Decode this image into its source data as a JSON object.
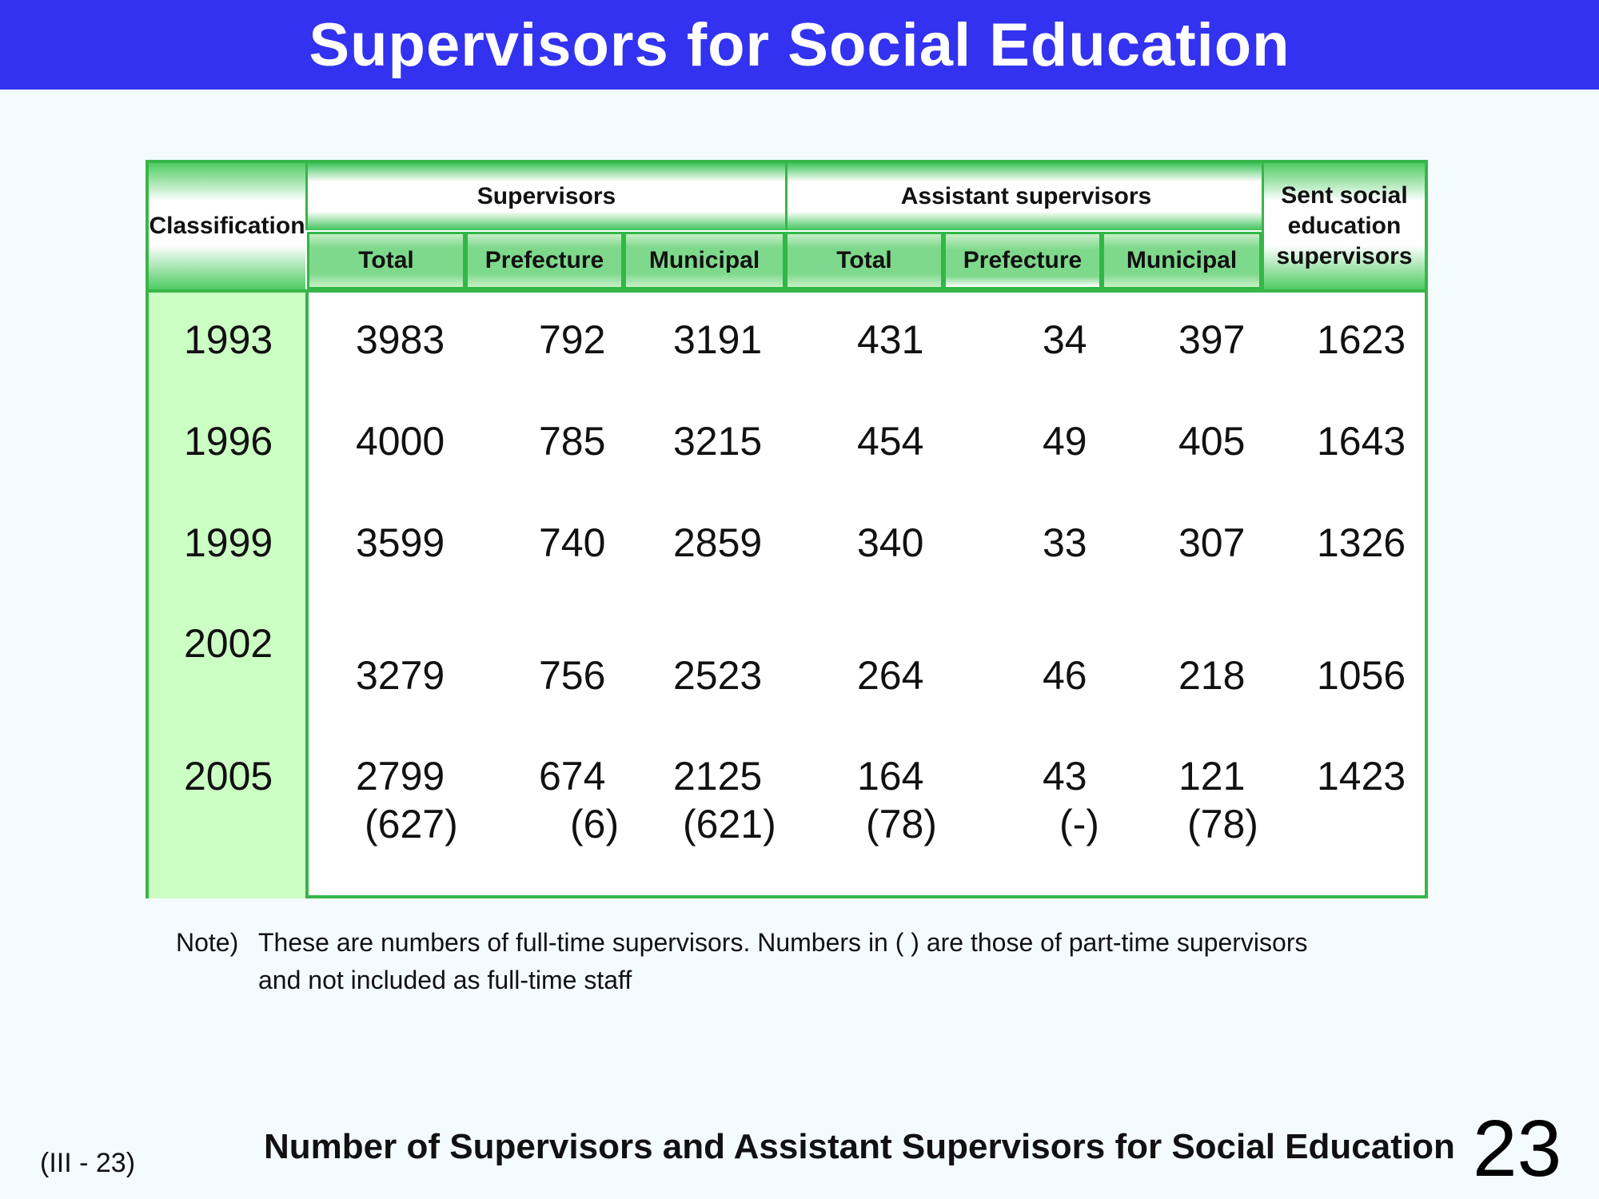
{
  "title": "Supervisors for Social Education",
  "table": {
    "classification_label": "Classification",
    "groups": [
      {
        "label": "Supervisors",
        "subcols": [
          "Total",
          "Prefecture",
          "Municipal"
        ]
      },
      {
        "label": "Assistant supervisors",
        "subcols": [
          "Total",
          "Prefecture",
          "Municipal"
        ]
      }
    ],
    "sent_label": "Sent social education supervisors",
    "rows": [
      {
        "year": "1993",
        "values": [
          "3983",
          "792",
          "3191",
          "431",
          "34",
          "397",
          "1623"
        ]
      },
      {
        "year": "1996",
        "values": [
          "4000",
          "785",
          "3215",
          "454",
          "49",
          "405",
          "1643"
        ]
      },
      {
        "year": "1999",
        "values": [
          "3599",
          "740",
          "2859",
          "340",
          "33",
          "307",
          "1326"
        ]
      },
      {
        "year": "2002",
        "values": [
          "3279",
          "756",
          "2523",
          "264",
          "46",
          "218",
          "1056"
        ]
      },
      {
        "year": "2005",
        "values": [
          "2799",
          "674",
          "2125",
          "164",
          "43",
          "121",
          "1423"
        ],
        "part_time": [
          "(627)",
          "(6)",
          "(621)",
          "(78)",
          "(-)",
          "(78)"
        ]
      }
    ]
  },
  "note": {
    "prefix": "Note)",
    "line1": "These are numbers of full-time supervisors.  Numbers in ( ) are those of part-time supervisors",
    "line2": "and not included as full-time staff"
  },
  "footer": {
    "ref": "(III - 23)",
    "title": "Number of Supervisors and Assistant Supervisors for Social Education",
    "page_number": "23"
  },
  "colors": {
    "title_bar": "#3232f0",
    "table_border": "#39b54a",
    "year_column": "#ccffc4",
    "header_green": "#7fd98c"
  }
}
